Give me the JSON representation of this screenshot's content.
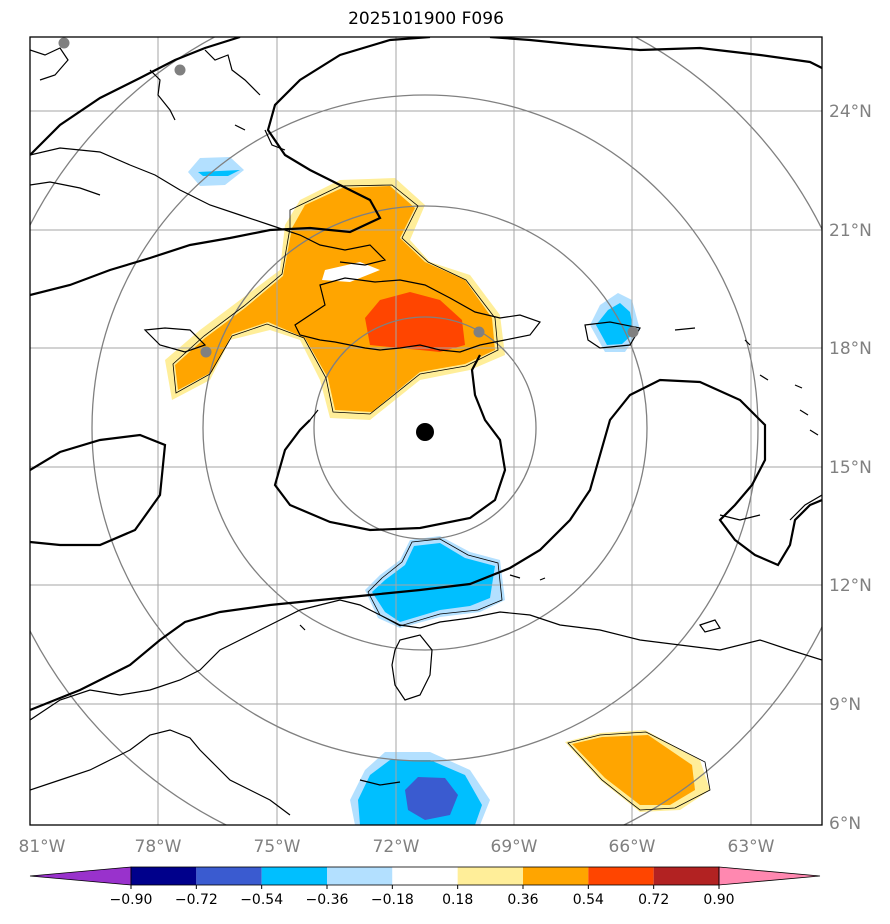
{
  "title": "2025101900 F096",
  "lon_ticks": [
    "81°W",
    "78°W",
    "75°W",
    "72°W",
    "69°W",
    "66°W",
    "63°W"
  ],
  "lat_ticks": [
    "24°N",
    "21°N",
    "18°N",
    "15°N",
    "12°N",
    "9°N",
    "6°N"
  ],
  "colorbar": {
    "labels": [
      "−0.90",
      "−0.72",
      "−0.54",
      "−0.36",
      "−0.18",
      "0.18",
      "0.36",
      "0.54",
      "0.72",
      "0.90"
    ],
    "colors": [
      "#9932cc",
      "#00008b",
      "#3a5bd0",
      "#00bfff",
      "#b3e0ff",
      "#ffffff",
      "#ffee99",
      "#ffa500",
      "#ff4500",
      "#b22222",
      "#ff88b0"
    ],
    "levels": [
      -0.9,
      -0.72,
      -0.54,
      -0.36,
      -0.18,
      0.18,
      0.36,
      0.54,
      0.72,
      0.9
    ]
  },
  "map": {
    "center": {
      "lon": -71.3,
      "lat": 15.9,
      "label": "storm center"
    },
    "extent": {
      "lon_min": -81,
      "lon_max": -61.5,
      "lat_min": 6,
      "lat_max": 25
    },
    "gridline_color": "#999999",
    "range_ring_color": "#808080",
    "marker_color": "#808080"
  }
}
